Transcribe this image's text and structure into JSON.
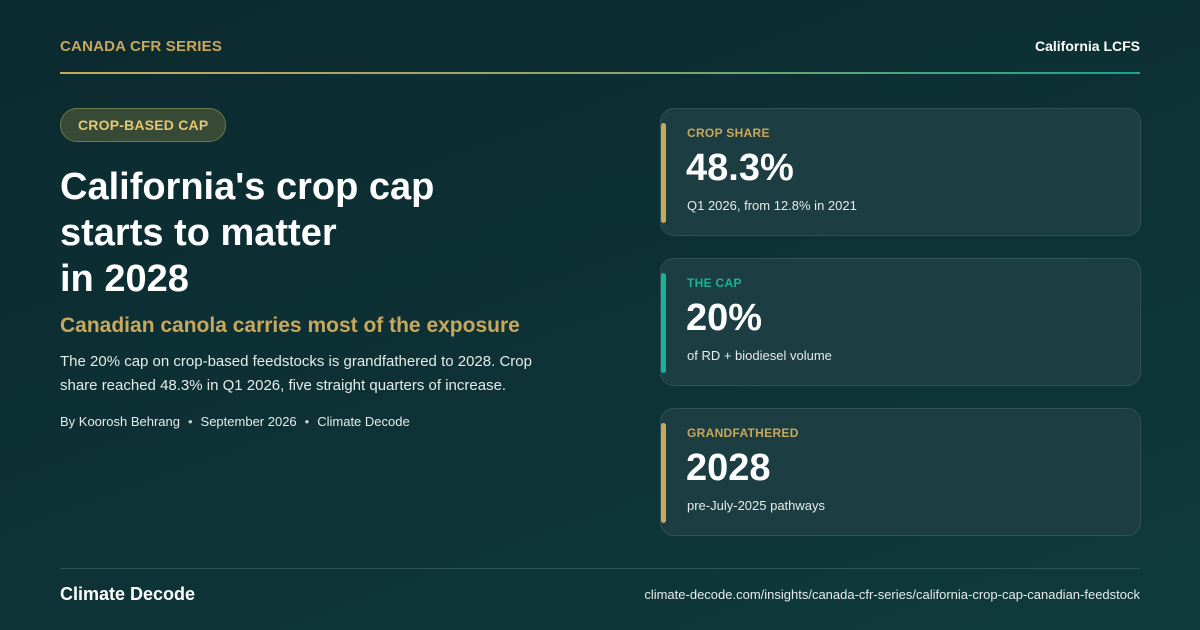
{
  "header": {
    "series": "CANADA CFR SERIES",
    "program": "California LCFS"
  },
  "article": {
    "badge": "CROP-BASED CAP",
    "title_lines": [
      "California's crop cap",
      "starts to matter",
      "in 2028"
    ],
    "subtitle": "Canadian canola carries most of the exposure",
    "body": "The 20% cap on crop-based feedstocks is grandfathered to 2028. Crop share reached 48.3% in Q1 2026, five straight quarters of increase.",
    "byline": {
      "author": "By Koorosh Behrang",
      "date": "September 2026",
      "publisher": "Climate Decode"
    }
  },
  "cards": [
    {
      "label": "CROP SHARE",
      "value": "48.3%",
      "note": "Q1 2026, from 12.8% in 2021",
      "accent": "#c9a85c",
      "label_color": "#c9a85c"
    },
    {
      "label": "THE CAP",
      "value": "20%",
      "note": "of RD + biodiesel volume",
      "accent": "#17b39b",
      "label_color": "#17b39b"
    },
    {
      "label": "GRANDFATHERED",
      "value": "2028",
      "note": "pre-July-2025 pathways",
      "accent": "#c9a85c",
      "label_color": "#c9a85c"
    }
  ],
  "footer": {
    "brand": "Climate Decode",
    "url": "climate-decode.com/insights/canada-cfr-series/california-crop-cap-canadian-feedstock"
  },
  "colors": {
    "gold": "#c9a85c",
    "teal": "#17b39b",
    "background": "#0e3236"
  }
}
